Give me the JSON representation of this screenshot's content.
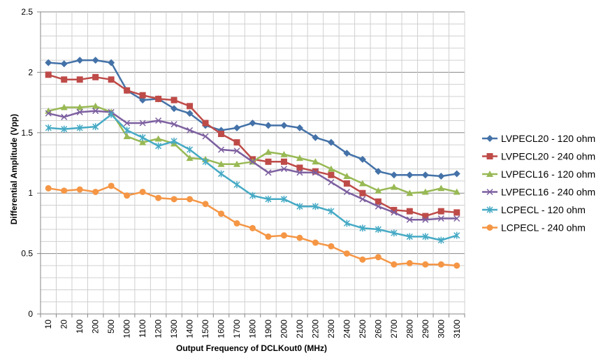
{
  "chart_data": {
    "type": "line",
    "title": "",
    "xlabel": "Output Frequency of DCLKout0  (MHz)",
    "ylabel": "Differential Amplitude (Vpp)",
    "ylim": [
      0,
      2.5
    ],
    "yticks": [
      0,
      0.5,
      1,
      1.5,
      2,
      2.5
    ],
    "ytick_labels": [
      "0",
      "0.5",
      "1",
      "1.5",
      "2",
      "2.5"
    ],
    "grid": true,
    "legend_position": "right",
    "categories": [
      "10",
      "20",
      "100",
      "200",
      "500",
      "1000",
      "1100",
      "1200",
      "1300",
      "1400",
      "1500",
      "1600",
      "1700",
      "1800",
      "1900",
      "2000",
      "2100",
      "2200",
      "2300",
      "2400",
      "2500",
      "2600",
      "2700",
      "2800",
      "2900",
      "3000",
      "3100"
    ],
    "series": [
      {
        "name": "LVPECL20 - 120 ohm",
        "color": "#4472A8",
        "marker": "diamond",
        "values": [
          2.08,
          2.07,
          2.1,
          2.1,
          2.08,
          1.85,
          1.77,
          1.78,
          1.7,
          1.66,
          1.56,
          1.52,
          1.54,
          1.58,
          1.56,
          1.56,
          1.54,
          1.46,
          1.42,
          1.33,
          1.28,
          1.18,
          1.15,
          1.15,
          1.15,
          1.14,
          1.16
        ]
      },
      {
        "name": "LVPECL20 - 240 ohm",
        "color": "#BE4B48",
        "marker": "square",
        "values": [
          1.98,
          1.94,
          1.94,
          1.96,
          1.94,
          1.85,
          1.81,
          1.78,
          1.77,
          1.72,
          1.58,
          1.49,
          1.42,
          1.28,
          1.26,
          1.26,
          1.21,
          1.18,
          1.15,
          1.08,
          1.0,
          0.93,
          0.86,
          0.85,
          0.81,
          0.85,
          0.84
        ]
      },
      {
        "name": "LVPECL16 - 120 ohm",
        "color": "#98B954",
        "marker": "triangle",
        "values": [
          1.68,
          1.71,
          1.71,
          1.72,
          1.67,
          1.47,
          1.42,
          1.45,
          1.41,
          1.29,
          1.28,
          1.24,
          1.24,
          1.26,
          1.34,
          1.32,
          1.29,
          1.26,
          1.2,
          1.14,
          1.08,
          1.02,
          1.05,
          1.0,
          1.01,
          1.04,
          1.01
        ]
      },
      {
        "name": "LVPECL16 - 240 ohm",
        "color": "#7D60A0",
        "marker": "x",
        "values": [
          1.66,
          1.63,
          1.67,
          1.68,
          1.67,
          1.58,
          1.58,
          1.6,
          1.57,
          1.52,
          1.47,
          1.36,
          1.35,
          1.26,
          1.17,
          1.2,
          1.17,
          1.17,
          1.09,
          1.01,
          0.95,
          0.89,
          0.84,
          0.78,
          0.78,
          0.79,
          0.79
        ]
      },
      {
        "name": "LCPECL - 120 ohm",
        "color": "#46AAC5",
        "marker": "star",
        "values": [
          1.54,
          1.53,
          1.54,
          1.55,
          1.65,
          1.52,
          1.46,
          1.39,
          1.43,
          1.36,
          1.26,
          1.16,
          1.07,
          0.98,
          0.95,
          0.95,
          0.89,
          0.89,
          0.85,
          0.75,
          0.71,
          0.7,
          0.67,
          0.64,
          0.64,
          0.61,
          0.65
        ]
      },
      {
        "name": "LCPECL - 240 ohm",
        "color": "#F59645",
        "marker": "circle",
        "values": [
          1.04,
          1.02,
          1.03,
          1.01,
          1.06,
          0.98,
          1.01,
          0.96,
          0.95,
          0.95,
          0.91,
          0.83,
          0.75,
          0.71,
          0.64,
          0.65,
          0.63,
          0.59,
          0.56,
          0.5,
          0.45,
          0.47,
          0.41,
          0.42,
          0.41,
          0.41,
          0.4
        ]
      }
    ]
  }
}
